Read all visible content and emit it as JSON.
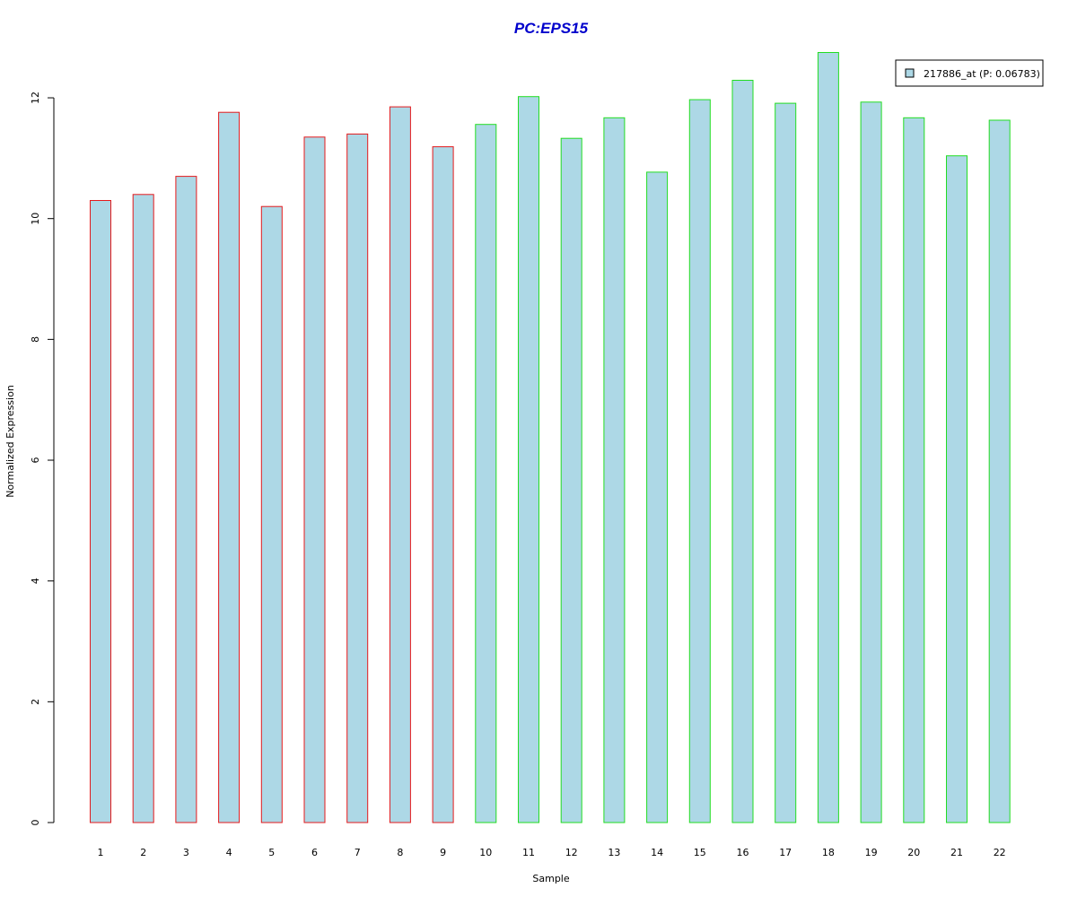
{
  "chart_data": {
    "type": "bar",
    "title": "PC:EPS15",
    "xlabel": "Sample",
    "ylabel": "Normalized Expression",
    "categories": [
      "1",
      "2",
      "3",
      "4",
      "5",
      "6",
      "7",
      "8",
      "9",
      "10",
      "11",
      "12",
      "13",
      "14",
      "15",
      "16",
      "17",
      "18",
      "19",
      "20",
      "21",
      "22"
    ],
    "series": [
      {
        "name": "217886_at (P: 0.06783)",
        "values": [
          10.3,
          10.4,
          10.7,
          11.76,
          10.2,
          11.35,
          11.4,
          11.85,
          11.19,
          11.56,
          12.02,
          11.33,
          11.67,
          10.77,
          11.97,
          12.29,
          11.91,
          12.75,
          11.93,
          11.67,
          11.04,
          11.63
        ]
      }
    ],
    "groups": [
      {
        "samples": [
          "1",
          "2",
          "3",
          "4",
          "5",
          "6",
          "7",
          "8",
          "9"
        ],
        "border_color": "#e41a1c"
      },
      {
        "samples": [
          "10",
          "11",
          "12",
          "13",
          "14",
          "15",
          "16",
          "17",
          "18",
          "19",
          "20",
          "21",
          "22"
        ],
        "border_color": "#22dd22"
      }
    ],
    "y_ticks": [
      0,
      2,
      4,
      6,
      8,
      10,
      12
    ],
    "ylim": [
      0,
      12.9
    ],
    "legend_position": "top-right",
    "grid": false,
    "colors": {
      "bar_fill": "#add8e6",
      "title": "#0000cc"
    }
  }
}
